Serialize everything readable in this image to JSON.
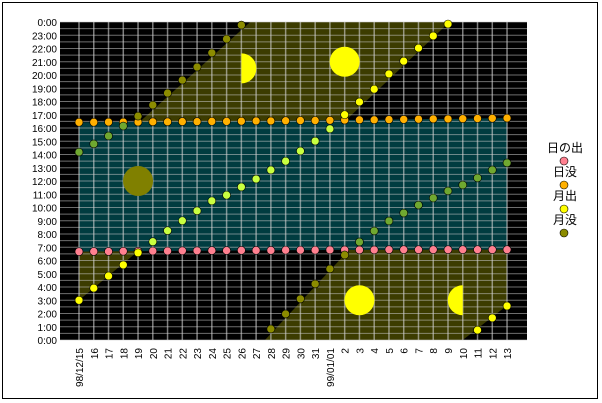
{
  "chart_data": {
    "type": "scatter",
    "title": "",
    "xlabel": "",
    "ylabel": "",
    "x_tick_labels": [
      "98/12/15",
      "16",
      "17",
      "18",
      "19",
      "20",
      "21",
      "22",
      "23",
      "24",
      "25",
      "26",
      "27",
      "28",
      "29",
      "30",
      "31",
      "99/01/01",
      "2",
      "3",
      "4",
      "5",
      "6",
      "7",
      "8",
      "9",
      "10",
      "11",
      "12",
      "13"
    ],
    "y_tick_labels": [
      "0:00",
      "1:00",
      "2:00",
      "3:00",
      "4:00",
      "5:00",
      "6:00",
      "7:00",
      "8:00",
      "9:00",
      "10:00",
      "11:00",
      "12:00",
      "13:00",
      "14:00",
      "15:00",
      "16:00",
      "17:00",
      "18:00",
      "19:00",
      "20:00",
      "21:00",
      "22:00",
      "23:00",
      "0:00"
    ],
    "ylim": [
      "0:00",
      "24:00"
    ],
    "grid": true,
    "legend_position": "right",
    "series": [
      {
        "name": "日の出",
        "color": "#FF8090",
        "values": [
          "6:40",
          "6:41",
          "6:41",
          "6:42",
          "6:42",
          "6:43",
          "6:43",
          "6:44",
          "6:44",
          "6:45",
          "6:45",
          "6:46",
          "6:46",
          "6:46",
          "6:47",
          "6:47",
          "6:47",
          "6:48",
          "6:48",
          "6:48",
          "6:48",
          "6:49",
          "6:49",
          "6:49",
          "6:49",
          "6:49",
          "6:49",
          "6:49",
          "6:49",
          "6:49"
        ]
      },
      {
        "name": "日没",
        "color": "#FFB000",
        "values": [
          "16:26",
          "16:26",
          "16:27",
          "16:27",
          "16:27",
          "16:28",
          "16:28",
          "16:29",
          "16:29",
          "16:30",
          "16:30",
          "16:31",
          "16:32",
          "16:32",
          "16:33",
          "16:34",
          "16:34",
          "16:35",
          "16:36",
          "16:37",
          "16:37",
          "16:38",
          "16:39",
          "16:40",
          "16:41",
          "16:41",
          "16:42",
          "16:43",
          "16:44",
          "16:45"
        ]
      },
      {
        "name": "月出",
        "color": "#FFFF00",
        "daytime_color": "#C8FF40",
        "values": [
          "3:00",
          "3:55",
          "4:50",
          "5:40",
          "6:35",
          "7:25",
          "8:15",
          "9:00",
          "9:45",
          "10:30",
          "10:56",
          "11:33",
          "12:09",
          "12:50",
          "13:30",
          "14:16",
          "15:01",
          "15:56",
          "17:00",
          "17:58",
          "18:56",
          "20:05",
          "21:03",
          "22:02",
          "22:57",
          "23:51",
          null,
          "0:45",
          "1:40",
          "2:34"
        ]
      },
      {
        "name": "月没",
        "color": "#8C8C00",
        "daytime_color": "#70A830",
        "values": [
          "14:11",
          "14:48",
          "15:24",
          "16:09",
          "16:54",
          "17:44",
          "18:38",
          "19:37",
          "20:36",
          "21:40",
          "22:43",
          "23:46",
          null,
          "0:50",
          "1:58",
          "3:06",
          "4:14",
          "5:22",
          "6:25",
          "7:24",
          "8:14",
          "8:59",
          "9:35",
          "10:11",
          "10:43",
          "11:15",
          "11:42",
          "12:14",
          "12:50",
          "13:22"
        ]
      }
    ],
    "moon_phases": [
      {
        "phase": "new",
        "date_index": 4,
        "time": "12:00",
        "color": "#808000"
      },
      {
        "phase": "first-quarter",
        "date_index": 11,
        "time": "20:30",
        "color": "#FFFF00"
      },
      {
        "phase": "full",
        "date_index": 18,
        "time": "21:00",
        "color": "#FFFF00"
      },
      {
        "phase": "full",
        "date_index": 19,
        "time": "3:00",
        "color": "#FFFF00"
      },
      {
        "phase": "last-quarter",
        "date_index": 26,
        "time": "3:00",
        "color": "#FFFF00"
      }
    ],
    "colors": {
      "night": "#000000",
      "day": "#003C40",
      "moon_up": "#3C3C00"
    }
  }
}
